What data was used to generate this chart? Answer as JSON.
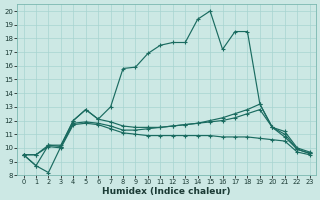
{
  "xlabel": "Humidex (Indice chaleur)",
  "bg_color": "#cce8e4",
  "grid_color": "#a8d4d0",
  "line_color": "#1a6b60",
  "xlim": [
    -0.5,
    23.5
  ],
  "ylim": [
    8.0,
    20.5
  ],
  "xticks": [
    0,
    1,
    2,
    3,
    4,
    5,
    6,
    7,
    8,
    9,
    10,
    11,
    12,
    13,
    14,
    15,
    16,
    17,
    18,
    19,
    20,
    21,
    22,
    23
  ],
  "yticks": [
    8,
    9,
    10,
    11,
    12,
    13,
    14,
    15,
    16,
    17,
    18,
    19,
    20
  ],
  "line_main": [
    9.5,
    8.7,
    8.2,
    10.1,
    12.0,
    12.8,
    12.1,
    13.0,
    15.8,
    15.9,
    16.9,
    17.5,
    17.7,
    17.7,
    19.4,
    20.0,
    17.2,
    18.5,
    18.5,
    13.2,
    11.5,
    10.8,
    9.9,
    9.6
  ],
  "line_second": [
    9.5,
    8.7,
    10.2,
    10.2,
    12.0,
    12.8,
    12.1,
    11.9,
    11.6,
    11.5,
    11.5,
    11.5,
    11.6,
    11.7,
    11.8,
    11.9,
    12.0,
    12.2,
    12.5,
    12.8,
    11.5,
    11.0,
    9.9,
    9.6
  ],
  "line_upper": [
    9.5,
    9.5,
    10.2,
    10.1,
    11.8,
    11.9,
    11.8,
    11.6,
    11.3,
    11.3,
    11.4,
    11.5,
    11.6,
    11.7,
    11.8,
    12.0,
    12.2,
    12.5,
    12.8,
    13.2,
    11.5,
    11.2,
    10.0,
    9.7
  ],
  "line_lower": [
    9.5,
    9.5,
    10.1,
    10.0,
    11.7,
    11.8,
    11.7,
    11.4,
    11.1,
    11.0,
    10.9,
    10.9,
    10.9,
    10.9,
    10.9,
    10.9,
    10.8,
    10.8,
    10.8,
    10.7,
    10.6,
    10.5,
    9.7,
    9.5
  ]
}
